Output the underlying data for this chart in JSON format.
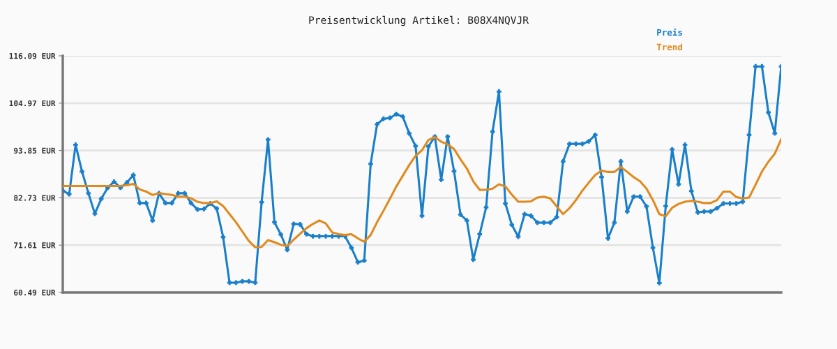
{
  "chart_data": {
    "type": "line",
    "title": "Preisentwicklung Artikel: B08X4NQVJR",
    "categories": [
      null,
      null,
      null,
      null,
      null,
      null,
      null,
      null,
      null,
      null,
      null,
      null,
      null,
      null,
      null,
      null,
      null,
      null,
      null,
      null,
      null,
      null,
      null,
      null,
      null,
      null,
      null,
      null,
      null,
      null,
      null,
      null,
      null,
      null,
      null,
      null,
      null,
      null,
      null,
      null,
      null,
      null,
      null,
      null,
      null,
      null,
      null,
      null,
      null,
      null,
      null,
      null,
      null,
      null,
      null,
      null,
      null,
      null,
      null,
      null,
      null,
      null,
      null,
      null,
      null,
      null,
      null,
      null,
      null,
      null,
      null,
      null,
      null,
      null,
      null,
      null,
      null,
      null,
      null,
      null,
      null,
      null,
      null,
      null,
      null,
      null,
      null,
      null,
      null,
      null,
      null,
      null,
      null,
      null,
      null,
      null,
      null,
      null,
      null,
      null,
      null,
      null,
      null,
      null,
      null,
      null,
      null,
      null,
      null,
      null,
      null,
      null,
      null
    ],
    "series": [
      {
        "name": "Preis",
        "color": "#1a7fc9",
        "marker": "cross",
        "values": [
          84.4,
          83.6,
          95.2,
          88.9,
          83.8,
          79.0,
          82.5,
          85.1,
          86.5,
          85.1,
          86.3,
          88.1,
          81.5,
          81.5,
          77.4,
          83.8,
          81.5,
          81.5,
          83.8,
          83.8,
          81.5,
          80.0,
          80.1,
          81.4,
          80.2,
          73.5,
          62.8,
          62.8,
          63.1,
          63.1,
          62.8,
          81.7,
          96.4,
          77.0,
          74.1,
          70.5,
          76.6,
          76.5,
          74.2,
          73.7,
          73.7,
          73.7,
          73.7,
          73.7,
          73.7,
          71.0,
          67.6,
          68.0,
          90.7,
          100.0,
          101.3,
          101.5,
          102.4,
          101.8,
          97.9,
          94.9,
          78.5,
          94.8,
          97.1,
          87.0,
          97.1,
          89.0,
          78.8,
          77.4,
          68.2,
          74.2,
          80.5,
          98.3,
          107.7,
          81.4,
          76.4,
          73.6,
          78.9,
          78.5,
          76.9,
          76.9,
          76.9,
          78.2,
          91.3,
          95.4,
          95.4,
          95.4,
          96.0,
          97.5,
          87.6,
          73.2,
          76.9,
          91.3,
          79.5,
          83.0,
          83.0,
          80.7,
          71.0,
          62.7,
          80.8,
          94.1,
          85.9,
          95.2,
          84.3,
          79.3,
          79.5,
          79.5,
          80.3,
          81.4,
          81.4,
          81.4,
          81.8,
          97.5,
          113.6,
          113.6,
          102.8,
          97.9,
          113.6
        ]
      },
      {
        "name": "Trend",
        "color": "#e08a1e",
        "marker": "none",
        "values": [
          85.5,
          85.5,
          85.5,
          85.5,
          85.5,
          85.5,
          85.5,
          85.5,
          85.5,
          85.5,
          85.7,
          86.0,
          84.7,
          84.2,
          83.4,
          83.8,
          83.6,
          83.4,
          83.0,
          83.0,
          82.6,
          81.8,
          81.5,
          81.5,
          81.9,
          80.8,
          78.9,
          77.0,
          74.8,
          72.6,
          71.1,
          71.2,
          72.8,
          72.3,
          71.7,
          71.4,
          72.9,
          74.3,
          75.6,
          76.6,
          77.4,
          76.7,
          74.6,
          74.2,
          74.0,
          74.2,
          73.2,
          72.4,
          74.0,
          77.0,
          79.7,
          82.5,
          85.4,
          87.9,
          90.4,
          92.6,
          93.9,
          96.3,
          97.0,
          95.9,
          95.3,
          94.2,
          91.8,
          89.6,
          86.6,
          84.6,
          84.6,
          84.9,
          85.9,
          85.4,
          83.5,
          81.8,
          81.8,
          81.9,
          82.8,
          83.0,
          82.6,
          80.7,
          78.9,
          80.3,
          82.2,
          84.4,
          86.3,
          88.1,
          89.1,
          88.8,
          88.8,
          90.0,
          88.8,
          87.6,
          86.6,
          84.9,
          82.2,
          78.9,
          78.4,
          80.4,
          81.3,
          81.8,
          82.0,
          81.8,
          81.5,
          81.5,
          82.2,
          84.2,
          84.2,
          82.9,
          82.6,
          82.8,
          85.8,
          88.9,
          91.2,
          93.1,
          96.5
        ]
      }
    ],
    "ylim": [
      60.49,
      116.09
    ],
    "yticks": [
      {
        "value": 60.49,
        "label": "60.49 EUR"
      },
      {
        "value": 71.61,
        "label": "71.61 EUR"
      },
      {
        "value": 82.73,
        "label": "82.73 EUR"
      },
      {
        "value": 93.85,
        "label": "93.85 EUR"
      },
      {
        "value": 104.97,
        "label": "104.97 EUR"
      },
      {
        "value": 116.09,
        "label": "116.09 EUR"
      }
    ],
    "tick_labels": "y",
    "grid": "y",
    "legend": "top right",
    "line_style": "solid"
  }
}
